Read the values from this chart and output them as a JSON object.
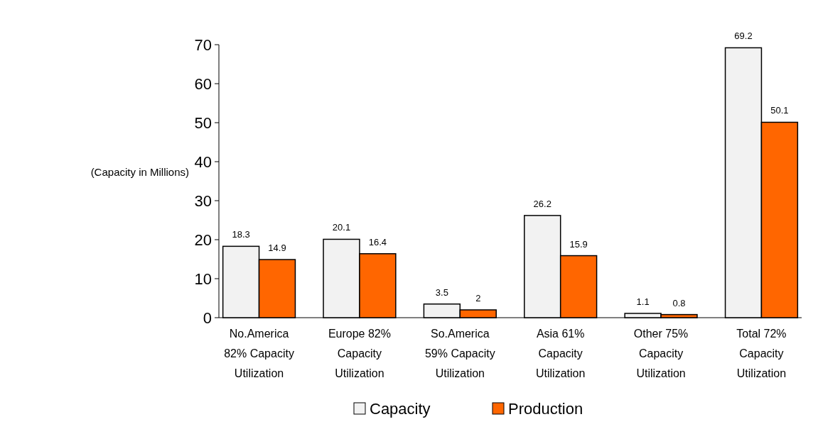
{
  "chart_data": {
    "type": "bar",
    "ylabel": "(Capacity in Millions)",
    "categories": [
      "No.America 82% Capacity Utilization",
      "Europe 82% Capacity Utilization",
      "So.America 59% Capacity Utilization",
      "Asia 61% Capacity Utilization",
      "Other 75% Capacity Utilization",
      "Total 72% Capacity Utilization"
    ],
    "series": [
      {
        "name": "Capacity",
        "color": "#f2f2f2",
        "values": [
          18.3,
          20.1,
          3.5,
          26.2,
          1.1,
          69.2
        ]
      },
      {
        "name": "Production",
        "color": "#ff6600",
        "values": [
          14.9,
          16.4,
          2,
          15.9,
          0.8,
          50.1
        ]
      }
    ],
    "ylim": [
      0,
      70
    ],
    "yticks": [
      0,
      10,
      20,
      30,
      40,
      50,
      60,
      70
    ],
    "data_labels": true,
    "legend": "bottom"
  }
}
